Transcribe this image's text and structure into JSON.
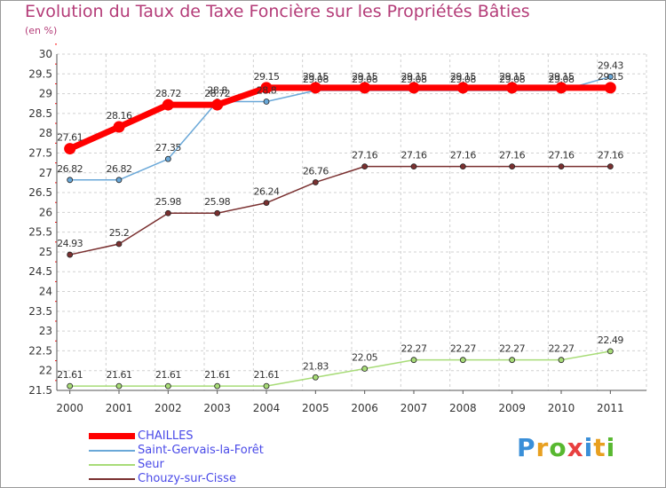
{
  "chart_data": {
    "type": "line",
    "title": "Evolution du Taux de Taxe Foncière sur les Propriétés Bâties",
    "unit_label": "(en %)",
    "x": [
      "2000",
      "2001",
      "2002",
      "2003",
      "2004",
      "2005",
      "2006",
      "2007",
      "2008",
      "2009",
      "2010",
      "2011"
    ],
    "ylim": [
      21.5,
      30
    ],
    "yticks": [
      "21.5",
      "22",
      "22.5",
      "23",
      "23.5",
      "24",
      "24.5",
      "25",
      "25.5",
      "26",
      "26.5",
      "27",
      "27.5",
      "28",
      "28.5",
      "29",
      "29.5",
      "30"
    ],
    "grid": true,
    "legend_position": "bottom-left",
    "series": [
      {
        "name": "CHAILLES",
        "color": "#ff0000",
        "values": [
          27.61,
          28.16,
          28.72,
          28.72,
          29.15,
          29.15,
          29.15,
          29.15,
          29.15,
          29.15,
          29.15,
          29.15
        ],
        "labels": [
          "27.61",
          "28.16",
          "28.72",
          "28.72",
          "29.15",
          "29.15",
          "29.15",
          "29.15",
          "29.15",
          "29.15",
          "29.15",
          "29.15"
        ]
      },
      {
        "name": "Saint-Gervais-la-Forêt",
        "color": "#6aa8d8",
        "values": [
          26.82,
          26.82,
          27.35,
          28.8,
          28.8,
          29.08,
          29.08,
          29.08,
          29.08,
          29.08,
          29.08,
          29.43
        ],
        "labels": [
          "26.82",
          "26.82",
          "27.35",
          "28.8",
          "28.8",
          "29.08",
          "29.08",
          "29.08",
          "29.08",
          "29.08",
          "29.08",
          "29.43"
        ]
      },
      {
        "name": "Seur",
        "color": "#a8dc78",
        "values": [
          21.61,
          21.61,
          21.61,
          21.61,
          21.61,
          21.83,
          22.05,
          22.27,
          22.27,
          22.27,
          22.27,
          22.49
        ],
        "labels": [
          "21.61",
          "21.61",
          "21.61",
          "21.61",
          "21.61",
          "21.83",
          "22.05",
          "22.27",
          "22.27",
          "22.27",
          "22.27",
          "22.49"
        ]
      },
      {
        "name": "Chouzy-sur-Cisse",
        "color": "#7a3030",
        "values": [
          24.93,
          25.2,
          25.98,
          25.98,
          26.24,
          26.76,
          27.16,
          27.16,
          27.16,
          27.16,
          27.16,
          27.16
        ],
        "labels": [
          "24.93",
          "25.2",
          "25.98",
          "25.98",
          "26.24",
          "26.76",
          "27.16",
          "27.16",
          "27.16",
          "27.16",
          "27.16",
          "27.16"
        ]
      }
    ]
  },
  "legend": {
    "items": [
      {
        "label": "CHAILLES",
        "color": "#ff0000"
      },
      {
        "label": "Saint-Gervais-la-Forêt",
        "color": "#6aa8d8"
      },
      {
        "label": "Seur",
        "color": "#a8dc78"
      },
      {
        "label": "Chouzy-sur-Cisse",
        "color": "#7a3030"
      }
    ]
  },
  "logo": {
    "letters": [
      "P",
      "r",
      "o",
      "x",
      "i",
      "t",
      "i"
    ],
    "colors": [
      "#3a8fd8",
      "#e8a020",
      "#58b830",
      "#e84040",
      "#3a8fd8",
      "#e8a020",
      "#58b830"
    ]
  }
}
